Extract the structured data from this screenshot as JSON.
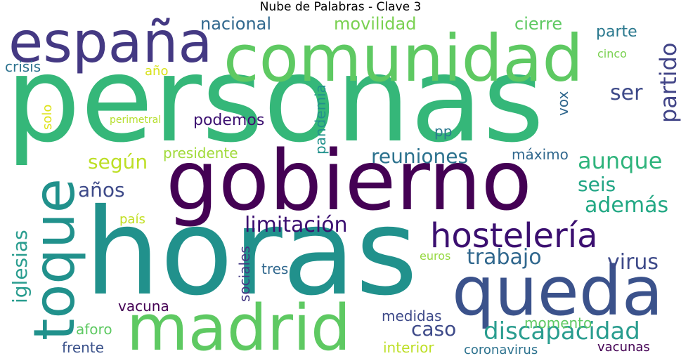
{
  "title": "Nube de Palabras - Clave 3",
  "words": [
    {
      "text": "personas",
      "color": "#35b779"
    },
    {
      "text": "horas",
      "color": "#21918c"
    },
    {
      "text": "gobierno",
      "color": "#440154"
    },
    {
      "text": "comunidad",
      "color": "#5ec962"
    },
    {
      "text": "madrid",
      "color": "#5ec962"
    },
    {
      "text": "queda",
      "color": "#3b528b"
    },
    {
      "text": "españa",
      "color": "#443983"
    },
    {
      "text": "toque",
      "color": "#21918c"
    },
    {
      "text": "hostelería",
      "color": "#3b0f70"
    },
    {
      "text": "discapacidad",
      "color": "#2a9d8f"
    },
    {
      "text": "limitación",
      "color": "#3b0f70"
    },
    {
      "text": "aunque",
      "color": "#2fb47c"
    },
    {
      "text": "partido",
      "color": "#414487"
    },
    {
      "text": "trabajo",
      "color": "#31688e"
    },
    {
      "text": "además",
      "color": "#22a884"
    },
    {
      "text": "reuniones",
      "color": "#2c728e"
    },
    {
      "text": "iglesias",
      "color": "#2a9d8f"
    },
    {
      "text": "según",
      "color": "#bddf26"
    },
    {
      "text": "virus",
      "color": "#3e4a89"
    },
    {
      "text": "caso",
      "color": "#3e4a89"
    },
    {
      "text": "años",
      "color": "#3e4a89"
    },
    {
      "text": "seis",
      "color": "#21a585"
    },
    {
      "text": "ser",
      "color": "#3e4a89"
    },
    {
      "text": "nacional",
      "color": "#31688e"
    },
    {
      "text": "movilidad",
      "color": "#7ad151"
    },
    {
      "text": "cierre",
      "color": "#5ec962"
    },
    {
      "text": "parte",
      "color": "#2a788e"
    },
    {
      "text": "podemos",
      "color": "#3b0f70"
    },
    {
      "text": "presidente",
      "color": "#a0da39"
    },
    {
      "text": "vacuna",
      "color": "#440154"
    },
    {
      "text": "sociales",
      "color": "#443983"
    },
    {
      "text": "pandemia",
      "color": "#21918c"
    },
    {
      "text": "crisis",
      "color": "#2c728e"
    },
    {
      "text": "vox",
      "color": "#31688e"
    },
    {
      "text": "pp",
      "color": "#2a788e"
    },
    {
      "text": "máximo",
      "color": "#31688e"
    },
    {
      "text": "medidas",
      "color": "#3e4a89"
    },
    {
      "text": "frente",
      "color": "#3b528b"
    },
    {
      "text": "aforo",
      "color": "#5ec962"
    },
    {
      "text": "momento",
      "color": "#5ec962"
    },
    {
      "text": "interior",
      "color": "#bddf26"
    },
    {
      "text": "coronavirus",
      "color": "#2c728e"
    },
    {
      "text": "vacunas",
      "color": "#440154"
    },
    {
      "text": "tres",
      "color": "#31688e"
    },
    {
      "text": "país",
      "color": "#c2df23"
    },
    {
      "text": "solo",
      "color": "#dde318"
    },
    {
      "text": "año",
      "color": "#d8e219"
    },
    {
      "text": "cinco",
      "color": "#7ad151"
    },
    {
      "text": "euros",
      "color": "#95d840"
    },
    {
      "text": "perimetral",
      "color": "#b5de2b"
    }
  ]
}
